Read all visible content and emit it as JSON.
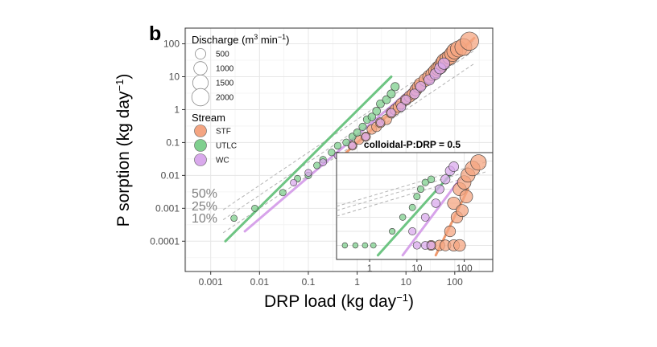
{
  "chart_data": {
    "type": "scatter",
    "panel_label": "b",
    "xlabel": {
      "main": "DRP load (kg day",
      "sup": "−1",
      "tail": ")"
    },
    "ylabel": {
      "main": "P sorption (kg day",
      "sup": "−1",
      "tail": ")"
    },
    "x_scale": "log",
    "y_scale": "log",
    "xlim": [
      0.0003,
      600
    ],
    "ylim": [
      1.2e-05,
      300
    ],
    "x_ticks": [
      0.001,
      0.01,
      0.1,
      1,
      10,
      100
    ],
    "x_tick_labels": [
      "0.001",
      "0.01",
      "0.1",
      "1",
      "10",
      "100"
    ],
    "y_ticks": [
      0.0001,
      0.001,
      0.01,
      0.1,
      1,
      10,
      100
    ],
    "y_tick_labels": [
      "0.0001",
      "0.001",
      "0.01",
      "0.1",
      "1",
      "10",
      "100"
    ],
    "grid": true,
    "legend_position": "top-left",
    "size_legend": {
      "title": {
        "main": "Discharge (m",
        "sup1": "3",
        "mid": " min",
        "sup2": "−1",
        "tail": ")"
      },
      "entries": [
        {
          "label": "500",
          "value": 500
        },
        {
          "label": "1000",
          "value": 1000
        },
        {
          "label": "1500",
          "value": 1500
        },
        {
          "label": "2000",
          "value": 2000
        }
      ]
    },
    "stream_legend": {
      "title": "Stream",
      "entries": [
        {
          "label": "STF",
          "color": "#f4a582"
        },
        {
          "label": "UTLC",
          "color": "#7fcf8e"
        },
        {
          "label": "WC",
          "color": "#d9a9ec"
        }
      ]
    },
    "reference_lines": [
      {
        "label": "50%",
        "ratio": 0.5
      },
      {
        "label": "25%",
        "ratio": 0.25
      },
      {
        "label": "10%",
        "ratio": 0.1
      }
    ],
    "fit_lines": [
      {
        "stream": "UTLC",
        "color": "#5fbf76",
        "x": [
          0.002,
          5
        ],
        "y": [
          0.0001,
          10
        ]
      },
      {
        "stream": "WC",
        "color": "#d39ae8",
        "x": [
          0.005,
          60
        ],
        "y": [
          0.0002,
          30
        ]
      },
      {
        "stream": "STF",
        "color": "#ee8e5e",
        "x": [
          0.6,
          250
        ],
        "y": [
          0.05,
          150
        ]
      }
    ],
    "series": [
      {
        "name": "STF",
        "color": "#f4a582",
        "points": [
          [
            0.8,
            0.08,
            300
          ],
          [
            1.1,
            0.12,
            320
          ],
          [
            1.5,
            0.15,
            350
          ],
          [
            2,
            0.25,
            380
          ],
          [
            2.5,
            0.3,
            400
          ],
          [
            3,
            0.4,
            420
          ],
          [
            4,
            0.5,
            450
          ],
          [
            5,
            0.8,
            480
          ],
          [
            6,
            1,
            500
          ],
          [
            7,
            1.2,
            520
          ],
          [
            8,
            1.5,
            550
          ],
          [
            10,
            2,
            600
          ],
          [
            12,
            2.5,
            650
          ],
          [
            14,
            3,
            700
          ],
          [
            16,
            4,
            750
          ],
          [
            18,
            5,
            800
          ],
          [
            20,
            6,
            850
          ],
          [
            25,
            8,
            900
          ],
          [
            30,
            10,
            950
          ],
          [
            35,
            12,
            1000
          ],
          [
            40,
            15,
            1050
          ],
          [
            45,
            18,
            1100
          ],
          [
            50,
            20,
            1150
          ],
          [
            55,
            25,
            1200
          ],
          [
            60,
            30,
            1250
          ],
          [
            70,
            35,
            1300
          ],
          [
            80,
            40,
            1400
          ],
          [
            90,
            50,
            1500
          ],
          [
            100,
            60,
            1600
          ],
          [
            120,
            70,
            1700
          ],
          [
            150,
            80,
            1900
          ],
          [
            200,
            120,
            2300
          ]
        ]
      },
      {
        "name": "UTLC",
        "color": "#7fcf8e",
        "points": [
          [
            0.003,
            0.0005,
            80
          ],
          [
            0.008,
            0.001,
            80
          ],
          [
            0.03,
            0.003,
            90
          ],
          [
            0.06,
            0.008,
            90
          ],
          [
            0.1,
            0.01,
            100
          ],
          [
            0.15,
            0.02,
            100
          ],
          [
            0.2,
            0.03,
            110
          ],
          [
            0.3,
            0.05,
            110
          ],
          [
            0.4,
            0.08,
            120
          ],
          [
            0.6,
            0.1,
            130
          ],
          [
            0.8,
            0.15,
            140
          ],
          [
            1,
            0.2,
            150
          ],
          [
            1.3,
            0.3,
            160
          ],
          [
            1.6,
            0.5,
            170
          ],
          [
            2,
            0.6,
            180
          ],
          [
            2.5,
            0.9,
            190
          ],
          [
            3,
            1.5,
            200
          ],
          [
            4,
            2,
            210
          ],
          [
            5,
            3,
            220
          ],
          [
            6,
            5,
            230
          ]
        ]
      },
      {
        "name": "WC",
        "color": "#d9a9ec",
        "points": [
          [
            0.05,
            0.006,
            100
          ],
          [
            0.1,
            0.012,
            110
          ],
          [
            0.2,
            0.025,
            120
          ],
          [
            0.4,
            0.04,
            130
          ],
          [
            0.8,
            0.08,
            150
          ],
          [
            1.5,
            0.15,
            180
          ],
          [
            3,
            0.4,
            200
          ],
          [
            5,
            0.8,
            250
          ],
          [
            8,
            1.2,
            300
          ],
          [
            10,
            2,
            350
          ],
          [
            15,
            3,
            400
          ],
          [
            20,
            5,
            450
          ],
          [
            30,
            8,
            500
          ],
          [
            40,
            12,
            550
          ],
          [
            50,
            18,
            600
          ],
          [
            60,
            25,
            650
          ]
        ]
      }
    ],
    "inset": {
      "title": "colloidal-P:DRP = 0.5",
      "x_ticks": [
        1,
        10,
        100
      ],
      "x_tick_labels": [
        "1",
        "10",
        "100"
      ],
      "xlim": [
        0.2,
        400
      ],
      "ylim": [
        1e-05,
        400
      ],
      "fit_lines": [
        {
          "stream": "UTLC",
          "color": "#5fbf76",
          "x": [
            1.5,
            50
          ],
          "y": [
            2e-05,
            10
          ]
        },
        {
          "stream": "WC",
          "color": "#d39ae8",
          "x": [
            5,
            80
          ],
          "y": [
            2e-05,
            5
          ]
        },
        {
          "stream": "STF",
          "color": "#ee8e5e",
          "x": [
            25,
            120
          ],
          "y": [
            2e-05,
            1
          ]
        }
      ],
      "series": [
        {
          "name": "STF",
          "points": [
            [
              20,
              0.0001,
              700
            ],
            [
              30,
              0.0001,
              800
            ],
            [
              40,
              0.0001,
              900
            ],
            [
              60,
              0.0001,
              1000
            ],
            [
              80,
              0.0001,
              1100
            ],
            [
              50,
              0.001,
              900
            ],
            [
              70,
              0.01,
              1100
            ],
            [
              60,
              0.1,
              1300
            ],
            [
              80,
              1,
              1500
            ],
            [
              100,
              3,
              1600
            ],
            [
              120,
              10,
              1800
            ],
            [
              150,
              30,
              2000
            ],
            [
              200,
              80,
              2300
            ],
            [
              90,
              0.03,
              1200
            ],
            [
              110,
              0.3,
              1400
            ]
          ]
        },
        {
          "name": "UTLC",
          "points": [
            [
              0.3,
              0.0001,
              80
            ],
            [
              0.5,
              0.0001,
              80
            ],
            [
              0.8,
              0.0001,
              90
            ],
            [
              1.2,
              0.0001,
              90
            ],
            [
              3,
              0.001,
              120
            ],
            [
              5,
              0.01,
              150
            ],
            [
              8,
              0.05,
              170
            ],
            [
              10,
              0.3,
              180
            ],
            [
              12,
              1,
              190
            ],
            [
              15,
              3,
              200
            ],
            [
              20,
              5,
              220
            ]
          ]
        },
        {
          "name": "WC",
          "points": [
            [
              10,
              0.0001,
              300
            ],
            [
              15,
              0.0001,
              350
            ],
            [
              20,
              0.0001,
              400
            ],
            [
              8,
              0.001,
              280
            ],
            [
              15,
              0.01,
              350
            ],
            [
              25,
              0.1,
              450
            ],
            [
              30,
              1,
              500
            ],
            [
              40,
              5,
              550
            ],
            [
              50,
              20,
              600
            ],
            [
              60,
              40,
              650
            ]
          ]
        }
      ]
    }
  }
}
